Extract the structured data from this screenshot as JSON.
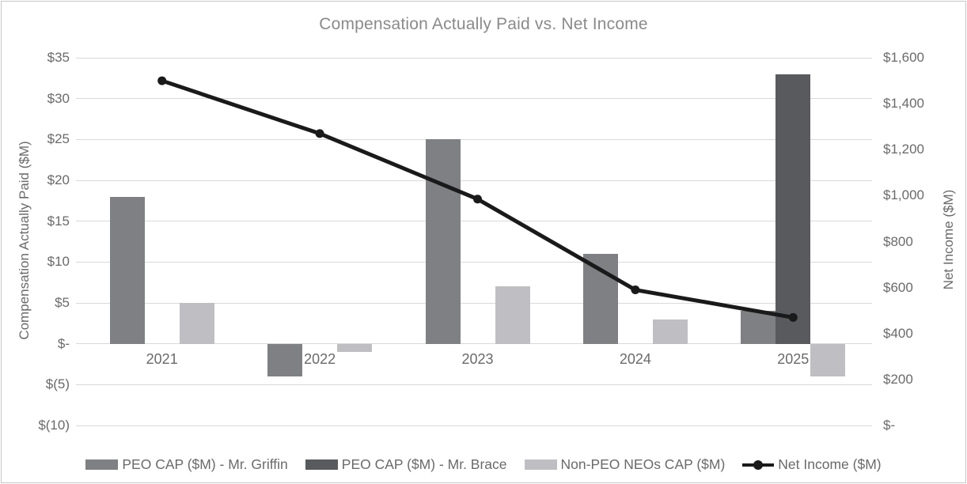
{
  "chart_data": {
    "type": "combo",
    "title": "Compensation Actually Paid vs. Net Income",
    "categories": [
      "2021",
      "2022",
      "2023",
      "2024",
      "2025"
    ],
    "series": [
      {
        "name": "PEO CAP ($M) - Mr. Griffin",
        "kind": "bar",
        "axis": "left",
        "color": "#7f8084",
        "values": [
          18,
          -4,
          25,
          11,
          4
        ]
      },
      {
        "name": "PEO CAP ($M) - Mr. Brace",
        "kind": "bar",
        "axis": "left",
        "color": "#595a5e",
        "values": [
          null,
          null,
          null,
          null,
          33
        ]
      },
      {
        "name": "Non-PEO NEOs CAP ($M)",
        "kind": "bar",
        "axis": "left",
        "color": "#bfbfc3",
        "values": [
          5,
          -1,
          7,
          3,
          -4
        ]
      },
      {
        "name": "Net Income ($M)",
        "kind": "line",
        "axis": "right",
        "color": "#1a1a1a",
        "values": [
          1500,
          1270,
          985,
          590,
          470
        ]
      }
    ],
    "left_axis": {
      "title": "Compensation Actually Paid ($M)",
      "min": -10,
      "max": 35,
      "step": 5,
      "tick_labels": [
        "$35",
        "$30",
        "$25",
        "$20",
        "$15",
        "$10",
        "$5",
        "$-",
        "$(5)",
        "$(10)"
      ]
    },
    "right_axis": {
      "title": "Net Income ($M)",
      "min": 0,
      "max": 1600,
      "step": 200,
      "tick_labels": [
        "$1,600",
        "$1,400",
        "$1,200",
        "$1,000",
        "$800",
        "$600",
        "$400",
        "$200",
        "$-"
      ]
    },
    "legend": {
      "position": "bottom"
    },
    "grid": true,
    "style": {
      "gridline_color": "#d9d9d9",
      "title_color": "#8a8a8a",
      "tick_color": "#6a6a6a",
      "line_width": 5,
      "marker_radius": 5.5
    }
  }
}
